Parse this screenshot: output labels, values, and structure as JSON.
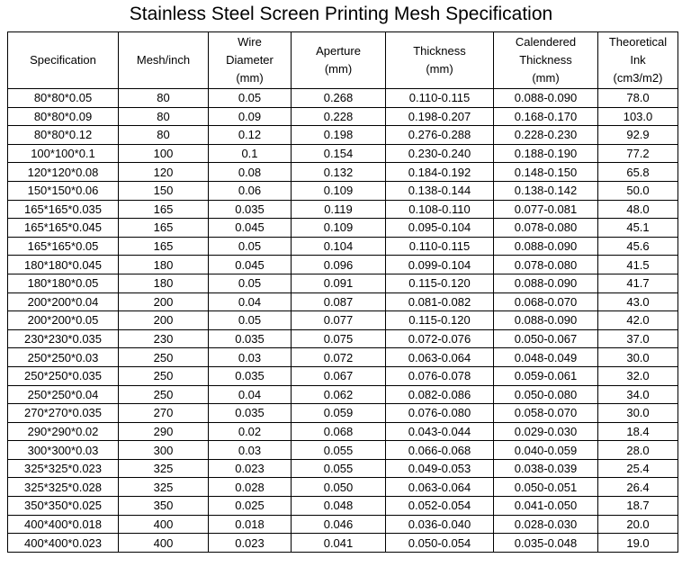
{
  "title": "Stainless Steel Screen Printing Mesh Specification",
  "headers": [
    [
      "Specification"
    ],
    [
      "Mesh/inch"
    ],
    [
      "Wire",
      "Diameter",
      "(mm)"
    ],
    [
      "Aperture",
      "(mm)"
    ],
    [
      "Thickness",
      "(mm)"
    ],
    [
      "Calendered",
      "Thickness",
      "(mm)"
    ],
    [
      "Theoretical",
      "Ink",
      "(cm3/m2)"
    ]
  ],
  "rows": [
    [
      "80*80*0.05",
      "80",
      "0.05",
      "0.268",
      "0.110-0.115",
      "0.088-0.090",
      "78.0"
    ],
    [
      "80*80*0.09",
      "80",
      "0.09",
      "0.228",
      "0.198-0.207",
      "0.168-0.170",
      "103.0"
    ],
    [
      "80*80*0.12",
      "80",
      "0.12",
      "0.198",
      "0.276-0.288",
      "0.228-0.230",
      "92.9"
    ],
    [
      "100*100*0.1",
      "100",
      "0.1",
      "0.154",
      "0.230-0.240",
      "0.188-0.190",
      "77.2"
    ],
    [
      "120*120*0.08",
      "120",
      "0.08",
      "0.132",
      "0.184-0.192",
      "0.148-0.150",
      "65.8"
    ],
    [
      "150*150*0.06",
      "150",
      "0.06",
      "0.109",
      "0.138-0.144",
      "0.138-0.142",
      "50.0"
    ],
    [
      "165*165*0.035",
      "165",
      "0.035",
      "0.119",
      "0.108-0.110",
      "0.077-0.081",
      "48.0"
    ],
    [
      "165*165*0.045",
      "165",
      "0.045",
      "0.109",
      "0.095-0.104",
      "0.078-0.080",
      "45.1"
    ],
    [
      "165*165*0.05",
      "165",
      "0.05",
      "0.104",
      "0.110-0.115",
      "0.088-0.090",
      "45.6"
    ],
    [
      "180*180*0.045",
      "180",
      "0.045",
      "0.096",
      "0.099-0.104",
      "0.078-0.080",
      "41.5"
    ],
    [
      "180*180*0.05",
      "180",
      "0.05",
      "0.091",
      "0.115-0.120",
      "0.088-0.090",
      "41.7"
    ],
    [
      "200*200*0.04",
      "200",
      "0.04",
      "0.087",
      "0.081-0.082",
      "0.068-0.070",
      "43.0"
    ],
    [
      "200*200*0.05",
      "200",
      "0.05",
      "0.077",
      "0.115-0.120",
      "0.088-0.090",
      "42.0"
    ],
    [
      "230*230*0.035",
      "230",
      "0.035",
      "0.075",
      "0.072-0.076",
      "0.050-0.067",
      "37.0"
    ],
    [
      "250*250*0.03",
      "250",
      "0.03",
      "0.072",
      "0.063-0.064",
      "0.048-0.049",
      "30.0"
    ],
    [
      "250*250*0.035",
      "250",
      "0.035",
      "0.067",
      "0.076-0.078",
      "0.059-0.061",
      "32.0"
    ],
    [
      "250*250*0.04",
      "250",
      "0.04",
      "0.062",
      "0.082-0.086",
      "0.050-0.080",
      "34.0"
    ],
    [
      "270*270*0.035",
      "270",
      "0.035",
      "0.059",
      "0.076-0.080",
      "0.058-0.070",
      "30.0"
    ],
    [
      "290*290*0.02",
      "290",
      "0.02",
      "0.068",
      "0.043-0.044",
      "0.029-0.030",
      "18.4"
    ],
    [
      "300*300*0.03",
      "300",
      "0.03",
      "0.055",
      "0.066-0.068",
      "0.040-0.059",
      "28.0"
    ],
    [
      "325*325*0.023",
      "325",
      "0.023",
      "0.055",
      "0.049-0.053",
      "0.038-0.039",
      "25.4"
    ],
    [
      "325*325*0.028",
      "325",
      "0.028",
      "0.050",
      "0.063-0.064",
      "0.050-0.051",
      "26.4"
    ],
    [
      "350*350*0.025",
      "350",
      "0.025",
      "0.048",
      "0.052-0.054",
      "0.041-0.050",
      "18.7"
    ],
    [
      "400*400*0.018",
      "400",
      "0.018",
      "0.046",
      "0.036-0.040",
      "0.028-0.030",
      "20.0"
    ],
    [
      "400*400*0.023",
      "400",
      "0.023",
      "0.041",
      "0.050-0.054",
      "0.035-0.048",
      "19.0"
    ]
  ]
}
